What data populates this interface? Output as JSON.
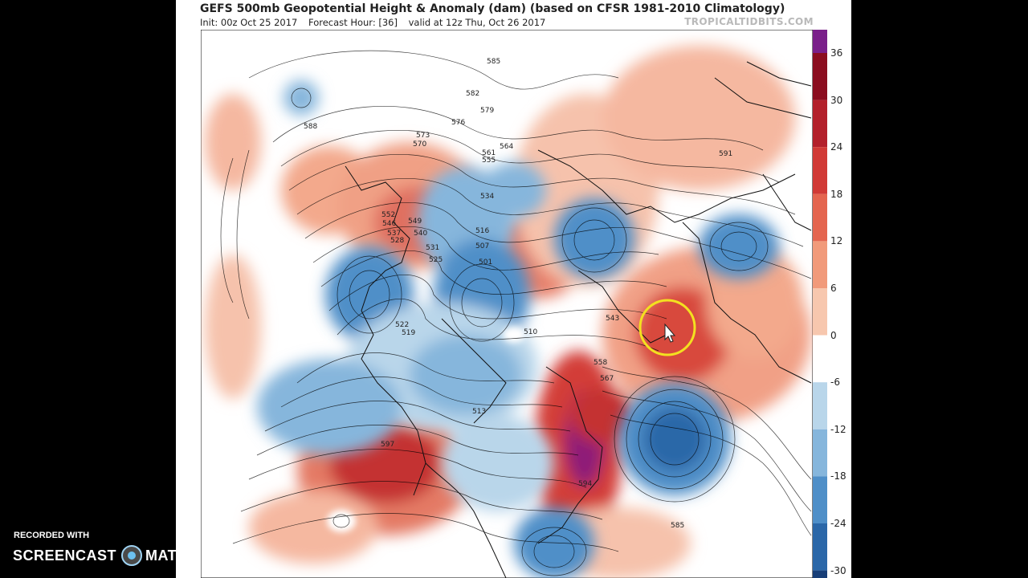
{
  "header": {
    "title": "GEFS 500mb Geopotential Height & Anomaly (dam) (based on CFSR 1981-2010 Climatology)",
    "init": "Init: 00z Oct 25 2017",
    "forecast_hour": "Forecast Hour: [36]",
    "valid": "valid at 12z Thu, Oct 26 2017",
    "brand": "TROPICALTIDBITS.COM"
  },
  "colorbar": {
    "labels": [
      "36",
      "30",
      "24",
      "18",
      "12",
      "6",
      "0",
      "-6",
      "-12",
      "-18",
      "-24",
      "-30"
    ],
    "colors": [
      "#7a1f8a",
      "#8b0d1f",
      "#b3202b",
      "#d13a36",
      "#e4654f",
      "#f19a7a",
      "#f7c7ae",
      "#ffffff",
      "#b9d6ea",
      "#86b6dc",
      "#4f8fc8",
      "#2b67a8",
      "#183f78"
    ]
  },
  "contour_labels": [
    "585",
    "582",
    "579",
    "576",
    "588",
    "573",
    "570",
    "564",
    "561",
    "555",
    "534",
    "552",
    "546",
    "549",
    "540",
    "537",
    "531",
    "528",
    "525",
    "516",
    "507",
    "501",
    "510",
    "522",
    "519",
    "513",
    "543",
    "558",
    "567",
    "591",
    "585",
    "597",
    "594"
  ],
  "overlay": {
    "recorded_with": "RECORDED WITH",
    "logo_left": "SCREENCAST",
    "logo_right": "MATIC"
  }
}
